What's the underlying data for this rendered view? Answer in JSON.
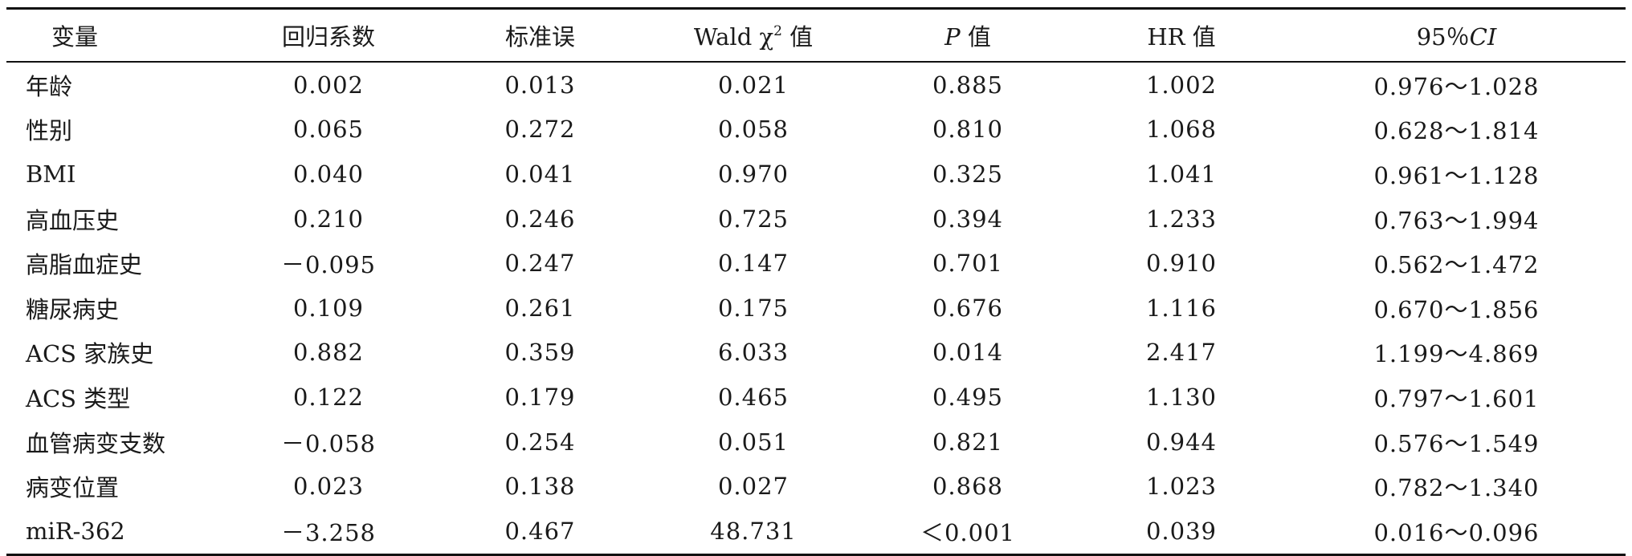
{
  "table": {
    "headers": {
      "variable": "变量",
      "coef": "回归系数",
      "se": "标准误",
      "wald_prefix": "Wald χ",
      "wald_sup": "2",
      "wald_suffix": " 值",
      "p_italic": "P",
      "p_suffix": " 值",
      "hr": "HR 值",
      "ci_prefix": "95％",
      "ci_italic": "CI"
    },
    "rows": [
      {
        "variable": "年龄",
        "coef": "0.002",
        "se": "0.013",
        "wald": "0.021",
        "p": "0.885",
        "hr": "1.002",
        "ci": "0.976～1.028"
      },
      {
        "variable": "性别",
        "coef": "0.065",
        "se": "0.272",
        "wald": "0.058",
        "p": "0.810",
        "hr": "1.068",
        "ci": "0.628～1.814"
      },
      {
        "variable": "BMI",
        "coef": "0.040",
        "se": "0.041",
        "wald": "0.970",
        "p": "0.325",
        "hr": "1.041",
        "ci": "0.961～1.128"
      },
      {
        "variable": "高血压史",
        "coef": "0.210",
        "se": "0.246",
        "wald": "0.725",
        "p": "0.394",
        "hr": "1.233",
        "ci": "0.763～1.994"
      },
      {
        "variable": "高脂血症史",
        "coef": "－0.095",
        "se": "0.247",
        "wald": "0.147",
        "p": "0.701",
        "hr": "0.910",
        "ci": "0.562～1.472"
      },
      {
        "variable": "糖尿病史",
        "coef": "0.109",
        "se": "0.261",
        "wald": "0.175",
        "p": "0.676",
        "hr": "1.116",
        "ci": "0.670～1.856"
      },
      {
        "variable": "ACS 家族史",
        "coef": "0.882",
        "se": "0.359",
        "wald": "6.033",
        "p": "0.014",
        "hr": "2.417",
        "ci": "1.199～4.869"
      },
      {
        "variable": "ACS 类型",
        "coef": "0.122",
        "se": "0.179",
        "wald": "0.465",
        "p": "0.495",
        "hr": "1.130",
        "ci": "0.797～1.601"
      },
      {
        "variable": "血管病变支数",
        "coef": "－0.058",
        "se": "0.254",
        "wald": "0.051",
        "p": "0.821",
        "hr": "0.944",
        "ci": "0.576～1.549"
      },
      {
        "variable": "病变位置",
        "coef": "0.023",
        "se": "0.138",
        "wald": "0.027",
        "p": "0.868",
        "hr": "1.023",
        "ci": "0.782～1.340"
      },
      {
        "variable": "miR-362",
        "coef": "－3.258",
        "se": "0.467",
        "wald": "48.731",
        "p": "＜0.001",
        "hr": "0.039",
        "ci": "0.016～0.096"
      }
    ]
  }
}
